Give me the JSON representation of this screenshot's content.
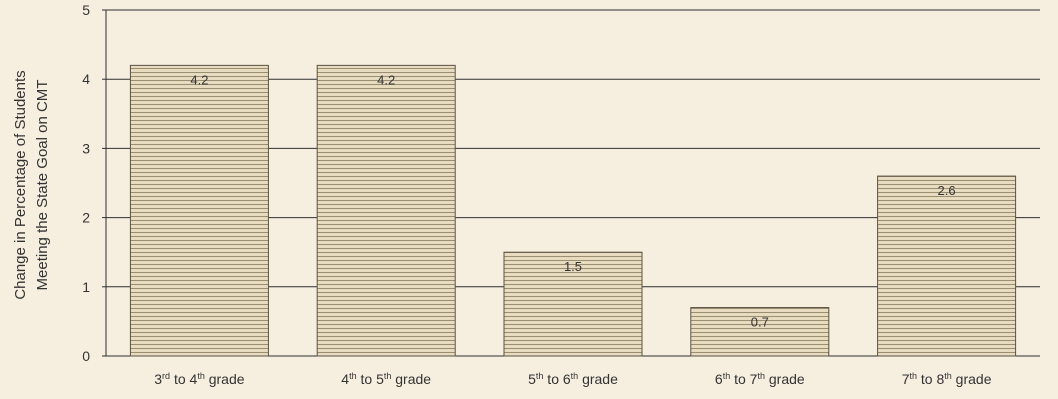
{
  "chart_data": {
    "type": "bar",
    "categories": [
      {
        "base": "3",
        "sup1": "rd",
        "mid": " to 4",
        "sup2": "th",
        "end": " grade"
      },
      {
        "base": "4",
        "sup1": "th",
        "mid": " to 5",
        "sup2": "th",
        "end": " grade"
      },
      {
        "base": "5",
        "sup1": "th",
        "mid": " to 6",
        "sup2": "th",
        "end": " grade"
      },
      {
        "base": "6",
        "sup1": "th",
        "mid": " to 7",
        "sup2": "th",
        "end": " grade"
      },
      {
        "base": "7",
        "sup1": "th",
        "mid": " to 8",
        "sup2": "th",
        "end": " grade"
      }
    ],
    "values": [
      4.2,
      4.2,
      1.5,
      0.7,
      2.6
    ],
    "data_labels": [
      "4.2",
      "4.2",
      "1.5",
      "0.7",
      "2.6"
    ],
    "title": "",
    "xlabel": "",
    "ylabel_lines": [
      "Change in Percentage of Students",
      "Meeting the State Goal on CMT"
    ],
    "ylim": [
      0,
      5
    ],
    "yticks": [
      0,
      1,
      2,
      3,
      4,
      5
    ],
    "ytick_labels": [
      "0",
      "1",
      "2",
      "3",
      "4",
      "5"
    ],
    "grid": true,
    "legend": "none"
  },
  "colors": {
    "background": "#f6efe0",
    "bar_fill": "#e8dcc0",
    "bar_stripe": "#9a8d70",
    "bar_border": "#5a5040",
    "gridline": "#2f2f2f",
    "text": "#333333"
  }
}
